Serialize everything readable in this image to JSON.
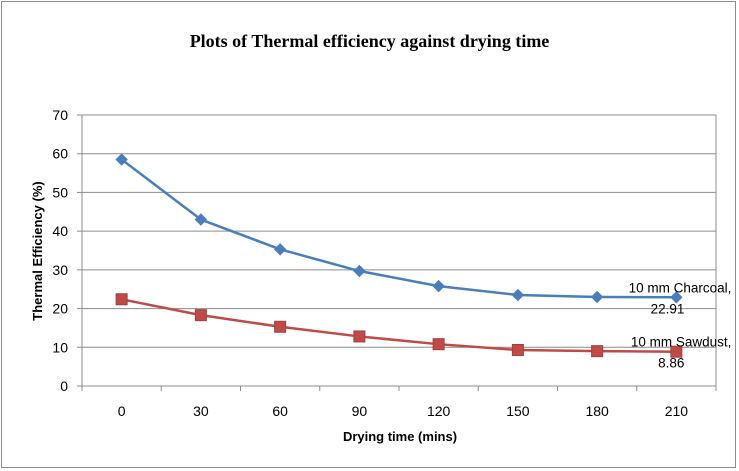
{
  "chart_data": {
    "type": "line",
    "title": "Plots of Thermal  efficiency against drying  time",
    "xlabel": "Drying time (mins)",
    "ylabel": "Thermal Efficiency (%)",
    "x": [
      0,
      30,
      60,
      90,
      120,
      150,
      180,
      210
    ],
    "ylim": [
      0,
      70
    ],
    "yticks": [
      0,
      10,
      20,
      30,
      40,
      50,
      60,
      70
    ],
    "grid": true,
    "legend": "none",
    "series": [
      {
        "name": "10 mm Charcoal",
        "color": "#4a7ebb",
        "marker": "diamond",
        "values": [
          58.5,
          43.0,
          35.3,
          29.7,
          25.8,
          23.5,
          23.0,
          22.91
        ]
      },
      {
        "name": "10 mm Sawdust",
        "color": "#be4b48",
        "marker": "square",
        "values": [
          22.4,
          18.3,
          15.3,
          12.8,
          10.8,
          9.3,
          9.0,
          8.86
        ]
      }
    ],
    "annotations": [
      {
        "series": "10 mm Charcoal",
        "line1": "10 mm Charcoal,",
        "line2": "22.91"
      },
      {
        "series": "10 mm Sawdust",
        "line1": "10 mm Sawdust,",
        "line2": "8.86"
      }
    ]
  }
}
